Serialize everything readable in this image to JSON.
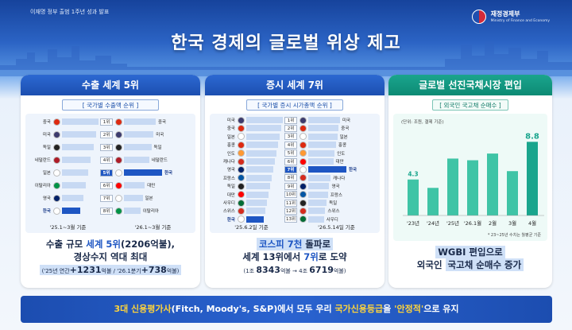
{
  "header": {
    "top_text": "이재명 정부 출범 1주년 성과 발표",
    "ministry_name": "재정경제부",
    "ministry_eng": "Ministry of Finance and Economy",
    "title": "한국 경제의 글로벌 위상 제고"
  },
  "panel1": {
    "title": "수출 세계 5위",
    "tag": "[ 국가별 수출액 순위 ]",
    "left": [
      "중국",
      "미국",
      "독일",
      "네덜란드",
      "일본",
      "이탈리아",
      "영국",
      "한국"
    ],
    "ranks": [
      "1위",
      "2위",
      "3위",
      "4위",
      "5위",
      "6위",
      "7위",
      "8위"
    ],
    "right": [
      "중국",
      "미국",
      "독일",
      "네덜란드",
      "한국",
      "대만",
      "일본",
      "이탈리아"
    ],
    "date_left": "'25.1~3월 기준",
    "date_right": "'26.1~3월 기준",
    "line1_a": "수출 규모 ",
    "line1_b": "세계 5위",
    "line1_c": "(2206억불),",
    "line2": "경상수지 역대 최대",
    "note_a": "('25년 연간",
    "note_b": "+1231",
    "note_c": "억불 / '26.1분기",
    "note_d": "+738",
    "note_e": "억불)"
  },
  "panel2": {
    "title": "증시 세계 7위",
    "tag": "[ 국가별 증시 시가총액 순위 ]",
    "left": [
      "미국",
      "중국",
      "일본",
      "홍콩",
      "인도",
      "캐나다",
      "영국",
      "프랑스",
      "독일",
      "대만",
      "사우디",
      "스위스",
      "한국"
    ],
    "ranks": [
      "1위",
      "2위",
      "3위",
      "4위",
      "5위",
      "6위",
      "7위",
      "8위",
      "9위",
      "10위",
      "11위",
      "12위",
      "13위"
    ],
    "right": [
      "미국",
      "중국",
      "일본",
      "홍콩",
      "인도",
      "대만",
      "한국",
      "캐나다",
      "영국",
      "프랑스",
      "독일",
      "스위스",
      "사우디"
    ],
    "date_left": "'25.6.2일 기준",
    "date_right": "'26.5.14일 기준",
    "line1_a": "코스피 7천",
    "line1_b": " 돌파로",
    "line2_a": "세계 13위에서 ",
    "line2_b": "7위",
    "line2_c": "로 도약",
    "note_a": "(1조 ",
    "note_b": "8343",
    "note_c": "억불 → 4조 ",
    "note_d": "6719",
    "note_e": "억불)"
  },
  "panel3": {
    "title": "글로벌 선진국채시장 편입",
    "tag": "[ 외국인 국고채 순매수 ]",
    "unit": "(단위: 조원, 결제 기준)",
    "footnote": "* 23~25년 수치는 월평균 기준",
    "line1": "WGBI 편입으로",
    "line2_a": "외국인 ",
    "line2_b": "국고채 순매수 증가"
  },
  "chart_data": {
    "type": "bar",
    "categories": [
      "'23년",
      "'24년",
      "'25년",
      "'26.1월",
      "2월",
      "3월",
      "4월"
    ],
    "values": [
      4.3,
      3.3,
      6.8,
      6.6,
      7.4,
      5.3,
      8.8
    ],
    "data_labels": {
      "0": "4.3",
      "6": "8.8"
    },
    "colors": {
      "bar": "#3fc4a6",
      "highlight": "#1aa58d"
    }
  },
  "banner": {
    "a": "3대 신용평가사",
    "b": "(Fitch, Moody's, S&P)에서 모두 우리 ",
    "c": "국가신용등급",
    "d": "을 ",
    "e": "'안정적'",
    "f": "으로 유지"
  },
  "colors": {
    "primary": "#1e56c3",
    "teal": "#1aa58d",
    "highlight_yellow": "#ffd43b"
  }
}
